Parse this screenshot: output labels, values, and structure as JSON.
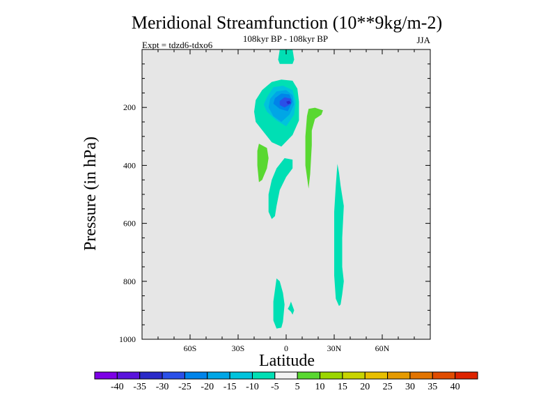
{
  "chart_data": {
    "type": "contour",
    "title": "Meridional Streamfunction (10**9kg/m-2)",
    "subtitle": "108kyr BP - 108kyr BP",
    "experiment": "Expt = tdzd6-tdxo6",
    "season": "JJA",
    "xlabel": "Latitude",
    "ylabel": "Pressure (in hPa)",
    "xlim": [
      -90,
      90
    ],
    "ylim": [
      1000,
      0
    ],
    "x_ticks": [
      {
        "value": -60,
        "label": "60S"
      },
      {
        "value": -30,
        "label": "30S"
      },
      {
        "value": 0,
        "label": "0"
      },
      {
        "value": 30,
        "label": "30N"
      },
      {
        "value": 60,
        "label": "60N"
      }
    ],
    "y_ticks": [
      {
        "value": 200,
        "label": "200"
      },
      {
        "value": 400,
        "label": "400"
      },
      {
        "value": 600,
        "label": "600"
      },
      {
        "value": 800,
        "label": "800"
      },
      {
        "value": 1000,
        "label": "1000"
      }
    ],
    "background_color": "#e6e6e6",
    "contour_regions": [
      {
        "name": "contour-region-equatorial-column",
        "level": -10,
        "color": "#00dfb4",
        "points": [
          [
            -4,
            0
          ],
          [
            4,
            0
          ],
          [
            5,
            35
          ],
          [
            4,
            50
          ],
          [
            -4,
            50
          ],
          [
            -5,
            35
          ]
        ]
      },
      {
        "name": "contour-region-upper-cell",
        "level": -10,
        "color": "#00dfb4",
        "points": [
          [
            -9,
            112
          ],
          [
            -3,
            104
          ],
          [
            4,
            108
          ],
          [
            7,
            135
          ],
          [
            8,
            180
          ],
          [
            8,
            245
          ],
          [
            4,
            295
          ],
          [
            -3,
            335
          ],
          [
            -9,
            320
          ],
          [
            -14,
            285
          ],
          [
            -19,
            250
          ],
          [
            -20,
            215
          ],
          [
            -19,
            175
          ],
          [
            -15,
            140
          ]
        ]
      },
      {
        "name": "contour-region-cell-minus15",
        "level": -15,
        "color": "#00c3dc",
        "points": [
          [
            -12,
            165
          ],
          [
            -8,
            130
          ],
          [
            -2,
            125
          ],
          [
            4,
            140
          ],
          [
            6,
            180
          ],
          [
            5,
            225
          ],
          [
            0,
            265
          ],
          [
            -6,
            245
          ],
          [
            -12,
            215
          ],
          [
            -14,
            190
          ]
        ]
      },
      {
        "name": "contour-region-cell-minus20",
        "level": -20,
        "color": "#00a6e6",
        "points": [
          [
            -10,
            170
          ],
          [
            -6,
            145
          ],
          [
            0,
            140
          ],
          [
            4,
            158
          ],
          [
            5,
            190
          ],
          [
            2,
            225
          ],
          [
            -3,
            250
          ],
          [
            -8,
            230
          ],
          [
            -11,
            200
          ]
        ]
      },
      {
        "name": "contour-region-cell-minus25",
        "level": -25,
        "color": "#0084ea",
        "points": [
          [
            -7,
            168
          ],
          [
            -3,
            152
          ],
          [
            2,
            155
          ],
          [
            4,
            180
          ],
          [
            1,
            213
          ],
          [
            -4,
            205
          ],
          [
            -8,
            187
          ]
        ]
      },
      {
        "name": "contour-region-cell-minus30",
        "level": -30,
        "color": "#2a50e8",
        "points": [
          [
            -4,
            178
          ],
          [
            -1,
            165
          ],
          [
            3,
            170
          ],
          [
            3,
            188
          ],
          [
            -1,
            200
          ],
          [
            -4,
            192
          ]
        ]
      },
      {
        "name": "contour-region-cell-minus35",
        "level": -35,
        "color": "#2a2ac8",
        "points": [
          [
            0,
            180
          ],
          [
            2,
            177
          ],
          [
            3,
            185
          ],
          [
            1,
            189
          ]
        ]
      },
      {
        "name": "contour-region-positive-nh-upper",
        "level": 5,
        "color": "#59d831",
        "points": [
          [
            14,
            205
          ],
          [
            18,
            201
          ],
          [
            23,
            210
          ],
          [
            22,
            225
          ],
          [
            18,
            240
          ],
          [
            16,
            280
          ],
          [
            16,
            330
          ],
          [
            15,
            430
          ],
          [
            14,
            480
          ],
          [
            12,
            400
          ],
          [
            12,
            300
          ],
          [
            13,
            230
          ]
        ]
      },
      {
        "name": "contour-region-positive-sh-upper",
        "level": 5,
        "color": "#59d831",
        "points": [
          [
            -17,
            325
          ],
          [
            -12,
            340
          ],
          [
            -11,
            375
          ],
          [
            -12,
            410
          ],
          [
            -15,
            450
          ],
          [
            -17,
            458
          ],
          [
            -18,
            400
          ],
          [
            -18,
            350
          ]
        ]
      },
      {
        "name": "contour-region-mid-equatorial",
        "level": -10,
        "color": "#00dfb4",
        "points": [
          [
            -1,
            375
          ],
          [
            4,
            380
          ],
          [
            4,
            410
          ],
          [
            0,
            440
          ],
          [
            -4,
            485
          ],
          [
            -6,
            540
          ],
          [
            -7,
            575
          ],
          [
            -9,
            585
          ],
          [
            -11,
            560
          ],
          [
            -11,
            500
          ],
          [
            -9,
            450
          ],
          [
            -6,
            410
          ]
        ]
      },
      {
        "name": "contour-region-nh-lower-tongue",
        "level": -10,
        "color": "#00dfb4",
        "points": [
          [
            32,
            395
          ],
          [
            33,
            425
          ],
          [
            34,
            470
          ],
          [
            36,
            540
          ],
          [
            35,
            650
          ],
          [
            35,
            750
          ],
          [
            36,
            800
          ],
          [
            35,
            845
          ],
          [
            34,
            880
          ],
          [
            33,
            885
          ],
          [
            31,
            860
          ],
          [
            30,
            780
          ],
          [
            30,
            680
          ],
          [
            30,
            560
          ],
          [
            31,
            470
          ]
        ]
      },
      {
        "name": "contour-region-surface-equatorial",
        "level": -10,
        "color": "#00dfb4",
        "points": [
          [
            -6,
            790
          ],
          [
            -4,
            800
          ],
          [
            -2,
            840
          ],
          [
            -1,
            880
          ],
          [
            -2,
            940
          ],
          [
            -3,
            960
          ],
          [
            -6,
            963
          ],
          [
            -8,
            935
          ],
          [
            -8,
            870
          ],
          [
            -7,
            830
          ]
        ]
      },
      {
        "name": "contour-region-surface-small",
        "level": -10,
        "color": "#00dfb4",
        "points": [
          [
            3,
            870
          ],
          [
            4,
            885
          ],
          [
            5,
            900
          ],
          [
            4,
            915
          ],
          [
            3,
            905
          ],
          [
            1,
            895
          ],
          [
            2,
            885
          ]
        ]
      }
    ],
    "colorbar": {
      "levels": [
        "-40",
        "-35",
        "-30",
        "-25",
        "-20",
        "-15",
        "-10",
        "-5",
        "5",
        "10",
        "15",
        "20",
        "25",
        "30",
        "35",
        "40"
      ],
      "colors": [
        "#7d00e6",
        "#5a14dc",
        "#2a2ac8",
        "#2a50e8",
        "#0084ea",
        "#00a6e6",
        "#00c3dc",
        "#00dfb4",
        "#f2f2f2",
        "#59d831",
        "#9bd600",
        "#c8d400",
        "#e8bf00",
        "#e59a00",
        "#e27400",
        "#e04c00",
        "#de2400"
      ]
    }
  }
}
